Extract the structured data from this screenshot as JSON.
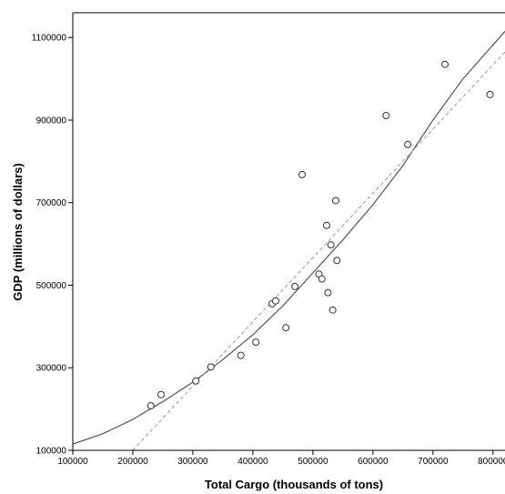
{
  "chart_data": {
    "type": "scatter",
    "xlabel": "Total Cargo (thousands of tons)",
    "ylabel": "GDP (millions of dollars)",
    "xlim": [
      100000,
      820000
    ],
    "ylim": [
      100000,
      1160000
    ],
    "x_ticks": [
      100000,
      200000,
      300000,
      400000,
      500000,
      600000,
      700000,
      800000
    ],
    "x_tick_labels": [
      "100000",
      "200000",
      "300000",
      "400000",
      "500000",
      "600000",
      "700000",
      "800000"
    ],
    "y_ticks": [
      100000,
      300000,
      500000,
      700000,
      900000,
      1100000
    ],
    "y_tick_labels": [
      "100000",
      "300000",
      "500000",
      "700000",
      "900000",
      "1100000"
    ],
    "grid": false,
    "series": [
      {
        "type": "scatter",
        "marker": "hollow-circle",
        "color": "#333333",
        "points": [
          {
            "x": 230000,
            "y": 208000
          },
          {
            "x": 247000,
            "y": 235000
          },
          {
            "x": 305000,
            "y": 268000
          },
          {
            "x": 330000,
            "y": 302000
          },
          {
            "x": 380000,
            "y": 330000
          },
          {
            "x": 405000,
            "y": 362000
          },
          {
            "x": 432000,
            "y": 455000
          },
          {
            "x": 438000,
            "y": 462000
          },
          {
            "x": 455000,
            "y": 397000
          },
          {
            "x": 470000,
            "y": 497000
          },
          {
            "x": 482000,
            "y": 768000
          },
          {
            "x": 510000,
            "y": 527000
          },
          {
            "x": 515000,
            "y": 515000
          },
          {
            "x": 523000,
            "y": 645000
          },
          {
            "x": 525000,
            "y": 482000
          },
          {
            "x": 530000,
            "y": 598000
          },
          {
            "x": 533000,
            "y": 440000
          },
          {
            "x": 538000,
            "y": 705000
          },
          {
            "x": 540000,
            "y": 560000
          },
          {
            "x": 622000,
            "y": 911000
          },
          {
            "x": 658000,
            "y": 841000
          },
          {
            "x": 720000,
            "y": 1035000
          },
          {
            "x": 795000,
            "y": 962000
          }
        ]
      },
      {
        "type": "line",
        "style": "solid",
        "color": "#555555",
        "fit": "curve",
        "points": [
          {
            "x": 100000,
            "y": 115000
          },
          {
            "x": 150000,
            "y": 140000
          },
          {
            "x": 200000,
            "y": 175000
          },
          {
            "x": 250000,
            "y": 218000
          },
          {
            "x": 300000,
            "y": 265000
          },
          {
            "x": 350000,
            "y": 320000
          },
          {
            "x": 400000,
            "y": 380000
          },
          {
            "x": 450000,
            "y": 450000
          },
          {
            "x": 500000,
            "y": 530000
          },
          {
            "x": 550000,
            "y": 610000
          },
          {
            "x": 600000,
            "y": 695000
          },
          {
            "x": 650000,
            "y": 790000
          },
          {
            "x": 700000,
            "y": 900000
          },
          {
            "x": 750000,
            "y": 1000000
          },
          {
            "x": 820000,
            "y": 1115000
          }
        ]
      },
      {
        "type": "line",
        "style": "dashed",
        "color": "#999999",
        "fit": "linear",
        "points": [
          {
            "x": 200000,
            "y": 100000
          },
          {
            "x": 820000,
            "y": 1065000
          }
        ]
      }
    ]
  }
}
